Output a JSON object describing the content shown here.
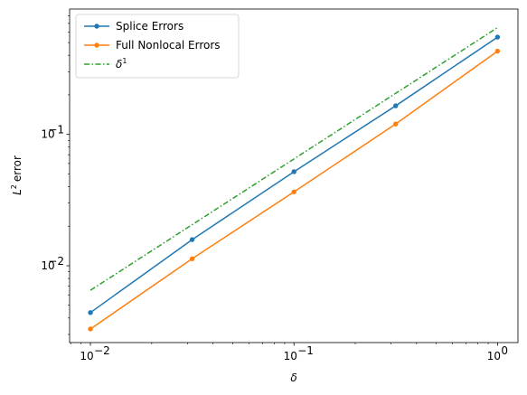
{
  "chart_data": {
    "type": "line",
    "xscale": "log",
    "yscale": "log",
    "xlabel": "δ",
    "ylabel": "error",
    "ylabel_prefix": "L",
    "ylabel_sup": "2",
    "xlim": [
      0.0079,
      1.26
    ],
    "ylim": [
      0.0026,
      0.9
    ],
    "xticks": [
      {
        "value": 0.01,
        "base": "10",
        "exp": "−2"
      },
      {
        "value": 0.1,
        "base": "10",
        "exp": "−1"
      },
      {
        "value": 1,
        "base": "10",
        "exp": "0"
      }
    ],
    "yticks": [
      {
        "value": 0.01,
        "base": "10",
        "exp": "−2"
      },
      {
        "value": 0.1,
        "base": "10",
        "exp": "−1"
      }
    ],
    "legend_position": "top-left",
    "grid": false,
    "series": [
      {
        "name": "Splice Errors",
        "color": "#1f77b4",
        "style": "solid",
        "marker": true,
        "x": [
          0.01,
          0.0316,
          0.1,
          0.316,
          1.0
        ],
        "y": [
          0.0044,
          0.0158,
          0.052,
          0.165,
          0.55
        ]
      },
      {
        "name": "Full Nonlocal Errors",
        "color": "#ff7f0e",
        "style": "solid",
        "marker": true,
        "x": [
          0.01,
          0.0316,
          0.1,
          0.316,
          1.0
        ],
        "y": [
          0.0033,
          0.0113,
          0.0365,
          0.12,
          0.43
        ]
      },
      {
        "name": "δ",
        "name_sup": "1",
        "color": "#2ca02c",
        "style": "dashdot",
        "marker": false,
        "x": [
          0.01,
          1.0
        ],
        "y": [
          0.0065,
          0.65
        ]
      }
    ]
  }
}
